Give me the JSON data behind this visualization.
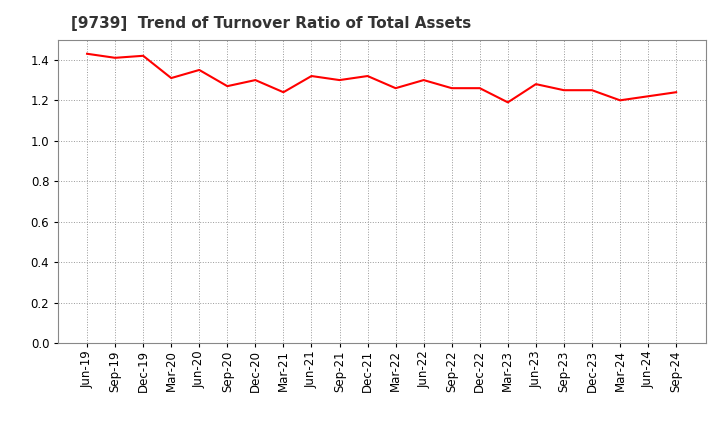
{
  "title": "[9739]  Trend of Turnover Ratio of Total Assets",
  "x_labels": [
    "Jun-19",
    "Sep-19",
    "Dec-19",
    "Mar-20",
    "Jun-20",
    "Sep-20",
    "Dec-20",
    "Mar-21",
    "Jun-21",
    "Sep-21",
    "Dec-21",
    "Mar-22",
    "Jun-22",
    "Sep-22",
    "Dec-22",
    "Mar-23",
    "Jun-23",
    "Sep-23",
    "Dec-23",
    "Mar-24",
    "Jun-24",
    "Sep-24"
  ],
  "y_values": [
    1.43,
    1.41,
    1.42,
    1.31,
    1.35,
    1.27,
    1.3,
    1.24,
    1.32,
    1.3,
    1.32,
    1.26,
    1.3,
    1.26,
    1.26,
    1.19,
    1.28,
    1.25,
    1.25,
    1.2,
    1.22,
    1.24
  ],
  "line_color": "#FF0000",
  "line_width": 1.5,
  "y_min": 0.0,
  "y_max": 1.5,
  "y_ticks": [
    0.0,
    0.2,
    0.4,
    0.6,
    0.8,
    1.0,
    1.2,
    1.4
  ],
  "background_color": "#ffffff",
  "plot_bg_color": "#ffffff",
  "grid_color": "#999999",
  "title_fontsize": 11,
  "tick_fontsize": 8.5
}
